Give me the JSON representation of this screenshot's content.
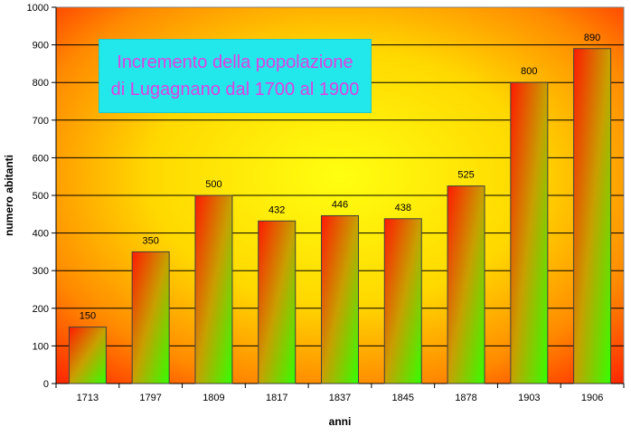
{
  "chart_data": {
    "type": "bar",
    "title_lines": [
      "Incremento della popolazione",
      "di Lugagnano dal 1700 al 1900"
    ],
    "xlabel": "anni",
    "ylabel": "numero abitanti",
    "categories": [
      "1713",
      "1797",
      "1809",
      "1817",
      "1837",
      "1845",
      "1878",
      "1903",
      "1906"
    ],
    "values": [
      150,
      350,
      500,
      432,
      446,
      438,
      525,
      800,
      890
    ],
    "ylim": [
      0,
      1000
    ],
    "yticks": [
      0,
      100,
      200,
      300,
      400,
      500,
      600,
      700,
      800,
      900,
      1000
    ],
    "grid": true,
    "legend": "none",
    "colors": {
      "bar_top": "#ff1a00",
      "bar_bottom": "#33ff00",
      "plot_bg_corner": "#ff2000",
      "plot_bg_center": "#ffff00",
      "title_box_bg": "#22e8ec",
      "title_text": "#e040e0"
    }
  }
}
